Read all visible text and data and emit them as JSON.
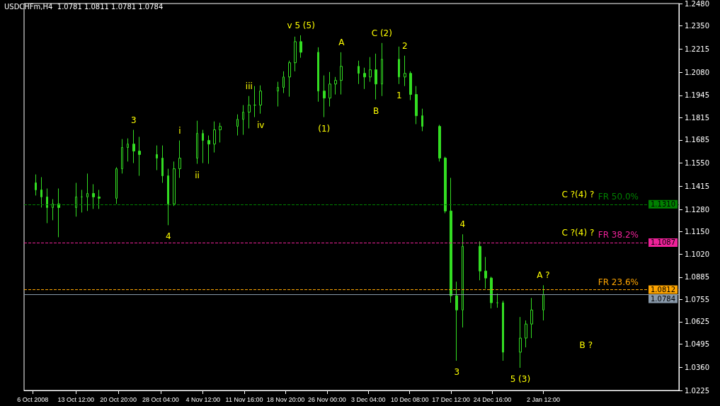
{
  "chart_data": {
    "type": "candlestick",
    "title": "USDCHFm,H4  1.0781 1.0811 1.0781 1.0784",
    "color": "#33dd22",
    "x": [
      "2008-10-06T12:00",
      "2008-10-07T12:00",
      "2008-10-08T12:00",
      "2008-10-09T12:00",
      "2008-10-10T12:00",
      "2008-10-13T12:00",
      "2008-10-14T12:00",
      "2008-10-15T12:00",
      "2008-10-16T12:00",
      "2008-10-17T12:00",
      "2008-10-20T12:00",
      "2008-10-21T12:00",
      "2008-10-22T12:00",
      "2008-10-23T12:00",
      "2008-10-24T12:00",
      "2008-10-27T12:00",
      "2008-10-28T12:00",
      "2008-10-29T12:00",
      "2008-10-30T12:00",
      "2008-10-31T12:00",
      "2008-11-03T12:00",
      "2008-11-04T12:00",
      "2008-11-05T12:00",
      "2008-11-06T12:00",
      "2008-11-07T12:00",
      "2008-11-10T12:00",
      "2008-11-11T12:00",
      "2008-11-12T12:00",
      "2008-11-13T12:00",
      "2008-11-14T12:00",
      "2008-11-17T12:00",
      "2008-11-18T12:00",
      "2008-11-19T12:00",
      "2008-11-20T12:00",
      "2008-11-21T12:00",
      "2008-11-24T12:00",
      "2008-11-25T12:00",
      "2008-11-26T12:00",
      "2008-11-27T12:00",
      "2008-11-28T12:00",
      "2008-12-01T12:00",
      "2008-12-02T12:00",
      "2008-12-03T12:00",
      "2008-12-04T12:00",
      "2008-12-05T12:00",
      "2008-12-08T12:00",
      "2008-12-09T12:00",
      "2008-12-10T12:00",
      "2008-12-11T12:00",
      "2008-12-12T12:00",
      "2008-12-15T12:00",
      "2008-12-16T12:00",
      "2008-12-17T12:00",
      "2008-12-18T12:00",
      "2008-12-19T12:00",
      "2008-12-22T12:00",
      "2008-12-23T12:00",
      "2008-12-24T12:00",
      "2008-12-25T12:00",
      "2008-12-26T12:00",
      "2008-12-29T12:00",
      "2008-12-30T12:00",
      "2008-12-31T12:00",
      "2009-01-02T12:00"
    ],
    "ohlc": [
      [
        1.1435,
        1.1484,
        1.1361,
        1.1394
      ],
      [
        1.1394,
        1.1468,
        1.1291,
        1.1353
      ],
      [
        1.1353,
        1.1402,
        1.12,
        1.1291
      ],
      [
        1.1291,
        1.134,
        1.1217,
        1.1312
      ],
      [
        1.1312,
        1.1402,
        1.1118,
        1.1291
      ],
      [
        1.1291,
        1.1435,
        1.1238,
        1.1353
      ],
      [
        1.1353,
        1.1394,
        1.1262,
        1.1353
      ],
      [
        1.1353,
        1.1489,
        1.1271,
        1.1373
      ],
      [
        1.1373,
        1.1427,
        1.1283,
        1.1353
      ],
      [
        1.1353,
        1.1394,
        1.1283,
        1.1345
      ],
      [
        1.1345,
        1.1526,
        1.1312,
        1.1517
      ],
      [
        1.1517,
        1.169,
        1.1489,
        1.1641
      ],
      [
        1.1641,
        1.1694,
        1.1559,
        1.1661
      ],
      [
        1.1661,
        1.1744,
        1.155,
        1.162
      ],
      [
        1.162,
        1.1703,
        1.1476,
        1.16
      ],
      [
        1.16,
        1.1653,
        1.1509,
        1.1579
      ],
      [
        1.1579,
        1.1653,
        1.1435,
        1.1476
      ],
      [
        1.1476,
        1.1517,
        1.1188,
        1.1312
      ],
      [
        1.1312,
        1.1559,
        1.13,
        1.1517
      ],
      [
        1.1517,
        1.1682,
        1.1464,
        1.1579
      ],
      [
        1.1579,
        1.1797,
        1.1546,
        1.1723
      ],
      [
        1.1723,
        1.1744,
        1.155,
        1.1682
      ],
      [
        1.1682,
        1.1711,
        1.1546,
        1.1661
      ],
      [
        1.1661,
        1.1793,
        1.1612,
        1.1744
      ],
      [
        1.1744,
        1.1785,
        1.167,
        1.1764
      ],
      [
        1.1764,
        1.1834,
        1.1711,
        1.1805
      ],
      [
        1.1805,
        1.1888,
        1.1715,
        1.1847
      ],
      [
        1.1847,
        1.1941,
        1.1752,
        1.1888
      ],
      [
        1.1888,
        1.1999,
        1.1818,
        1.1888
      ],
      [
        1.1888,
        1.2003,
        1.1838,
        1.197
      ],
      [
        1.197,
        1.2024,
        1.188,
        1.1991
      ],
      [
        1.1991,
        1.2085,
        1.1958,
        1.2052
      ],
      [
        1.2052,
        1.2147,
        1.1937,
        1.2135
      ],
      [
        1.2135,
        1.2287,
        1.2085,
        1.2258
      ],
      [
        1.2258,
        1.2295,
        1.2164,
        1.2196
      ],
      [
        1.2196,
        1.2225,
        1.1908,
        1.197
      ],
      [
        1.197,
        1.2061,
        1.1818,
        1.1929
      ],
      [
        1.1929,
        1.2081,
        1.188,
        1.2011
      ],
      [
        1.2011,
        1.2052,
        1.195,
        1.2032
      ],
      [
        1.2032,
        1.2196,
        1.195,
        1.2114
      ],
      [
        1.2114,
        1.2147,
        1.2011,
        1.2073
      ],
      [
        1.2073,
        1.2106,
        1.1982,
        1.2052
      ],
      [
        1.2052,
        1.2168,
        1.2024,
        1.2094
      ],
      [
        1.2094,
        1.2188,
        1.1921,
        1.2011
      ],
      [
        1.2011,
        1.225,
        1.1941,
        1.2155
      ],
      [
        1.2155,
        1.2229,
        1.2011,
        1.2052
      ],
      [
        1.2052,
        1.2176,
        1.1999,
        1.2073
      ],
      [
        1.2073,
        1.2085,
        1.1917,
        1.195
      ],
      [
        1.195,
        1.1999,
        1.1777,
        1.1826
      ],
      [
        1.1826,
        1.1867,
        1.1736,
        1.1764
      ],
      [
        1.1764,
        1.1773,
        1.1559,
        1.1579
      ],
      [
        1.1579,
        1.1587,
        1.1258,
        1.1271
      ],
      [
        1.1271,
        1.1464,
        1.0736,
        1.0777
      ],
      [
        1.0777,
        1.0859,
        1.0398,
        1.0694
      ],
      [
        1.0694,
        1.1135,
        1.0592,
        1.1065
      ],
      [
        1.1065,
        1.1094,
        1.0867,
        1.0921
      ],
      [
        1.0921,
        1.1003,
        1.0818,
        1.088
      ],
      [
        1.088,
        1.0888,
        1.0703,
        1.0736
      ],
      [
        1.0736,
        1.0789,
        1.0707,
        1.0736
      ],
      [
        1.0736,
        1.0748,
        1.0398,
        1.0448
      ],
      [
        1.0448,
        1.0653,
        1.0357,
        1.053
      ],
      [
        1.053,
        1.0633,
        1.0476,
        1.0612
      ],
      [
        1.0612,
        1.0764,
        1.053,
        1.0694
      ],
      [
        1.0694,
        1.0838,
        1.0633,
        1.0784
      ]
    ],
    "xlim": [
      "2008-10-04T12:00",
      "2009-01-26T00:00"
    ],
    "xticks": [
      {
        "value": "2008-10-06T00:00",
        "label": "6 Oct 2008"
      },
      {
        "value": "2008-10-13T12:00",
        "label": "13 Oct 12:00"
      },
      {
        "value": "2008-10-20T20:00",
        "label": "20 Oct 20:00"
      },
      {
        "value": "2008-10-28T04:00",
        "label": "28 Oct 04:00"
      },
      {
        "value": "2008-11-04T12:00",
        "label": "4 Nov 12:00"
      },
      {
        "value": "2008-11-11T16:00",
        "label": "11 Nov 16:00"
      },
      {
        "value": "2008-11-18T20:00",
        "label": "18 Nov 20:00"
      },
      {
        "value": "2008-11-26T00:00",
        "label": "26 Nov 00:00"
      },
      {
        "value": "2008-12-03T04:00",
        "label": "3 Dec 04:00"
      },
      {
        "value": "2008-12-10T08:00",
        "label": "10 Dec 08:00"
      },
      {
        "value": "2008-12-17T12:00",
        "label": "17 Dec 12:00"
      },
      {
        "value": "2008-12-24T16:00",
        "label": "24 Dec 16:00"
      },
      {
        "value": "2009-01-02T12:00",
        "label": "2 Jan 12:00"
      }
    ],
    "ylim": [
      1.0225,
      1.248
    ],
    "yticks": [
      {
        "value": 1.248,
        "label": "1.2480"
      },
      {
        "value": 1.235,
        "label": "1.2350"
      },
      {
        "value": 1.2215,
        "label": "1.2215"
      },
      {
        "value": 1.208,
        "label": "1.2080"
      },
      {
        "value": 1.1945,
        "label": "1.1945"
      },
      {
        "value": 1.1815,
        "label": "1.1815"
      },
      {
        "value": 1.1685,
        "label": "1.1685"
      },
      {
        "value": 1.155,
        "label": "1.1550"
      },
      {
        "value": 1.1415,
        "label": "1.1415"
      },
      {
        "value": 1.128,
        "label": "1.1280"
      },
      {
        "value": 1.115,
        "label": "1.1150"
      },
      {
        "value": 1.102,
        "label": "1.1020"
      },
      {
        "value": 1.0885,
        "label": "1.0885"
      },
      {
        "value": 1.0755,
        "label": "1.0755"
      },
      {
        "value": 1.0625,
        "label": "1.0625"
      },
      {
        "value": 1.0495,
        "label": "1.0495"
      },
      {
        "value": 1.036,
        "label": "1.0360"
      },
      {
        "value": 1.0225,
        "label": "1.0225"
      }
    ],
    "ref_lines": [
      {
        "axis": "y",
        "value": 1.131,
        "label": "FR 50.0%",
        "color": "#008000",
        "line_style": "dashed"
      },
      {
        "axis": "y",
        "value": 1.1087,
        "label": "FR 38.2%",
        "color": "#ee2299",
        "line_style": "dashed"
      },
      {
        "axis": "y",
        "value": 1.0812,
        "label": "FR 23.6%",
        "color": "#ffa500",
        "line_style": "dashed"
      },
      {
        "axis": "y",
        "value": 1.0784,
        "label": null,
        "color": "#8899aa",
        "line_style": "solid"
      }
    ],
    "annotations": [
      {
        "text": "3",
        "x": "2008-10-23T12:00",
        "y": 1.1744
      },
      {
        "text": "i",
        "x": "2008-10-31T12:00",
        "y": 1.1682
      },
      {
        "text": "4",
        "x": "2008-10-29T12:00",
        "y": 1.1188
      },
      {
        "text": "ii",
        "x": "2008-11-03T12:00",
        "y": 1.1546
      },
      {
        "text": "iii",
        "x": "2008-11-12T12:00",
        "y": 1.1941
      },
      {
        "text": "iv",
        "x": "2008-11-14T12:00",
        "y": 1.1838
      },
      {
        "text": "v 5 (5)",
        "x": "2008-11-21T12:00",
        "y": 1.2295
      },
      {
        "text": "(1)",
        "x": "2008-11-25T12:00",
        "y": 1.1818
      },
      {
        "text": "A",
        "x": "2008-11-28T12:00",
        "y": 1.2196
      },
      {
        "text": "B",
        "x": "2008-12-04T12:00",
        "y": 1.1921
      },
      {
        "text": "C (2)",
        "x": "2008-12-05T12:00",
        "y": 1.225
      },
      {
        "text": "1",
        "x": "2008-12-08T12:00",
        "y": 1.2011
      },
      {
        "text": "2",
        "x": "2008-12-09T12:00",
        "y": 1.2176
      },
      {
        "text": "3",
        "x": "2008-12-18T12:00",
        "y": 1.0398
      },
      {
        "text": "4",
        "x": "2008-12-19T12:00",
        "y": 1.1135
      },
      {
        "text": "5 (3)",
        "x": "2008-12-29T12:00",
        "y": 1.0357
      },
      {
        "text": "A ?",
        "x": "2009-01-02T12:00",
        "y": 1.0838
      },
      "B ?",
      {
        "text": "C ?(4) ?",
        "x": "2009-01-08T12:00",
        "y": 1.131
      },
      {
        "text": "C ?(4) ?",
        "x": "2009-01-08T12:00",
        "y": 1.1087
      },
      {
        "text": "1.1310",
        "y": 1.131
      },
      {
        "text": "1.1087",
        "y": 1.1087
      },
      {
        "text": "1.0812",
        "y": 1.0812
      },
      {
        "text": "1.0784",
        "y": 1.0784
      }
    ],
    "grid": false
  }
}
